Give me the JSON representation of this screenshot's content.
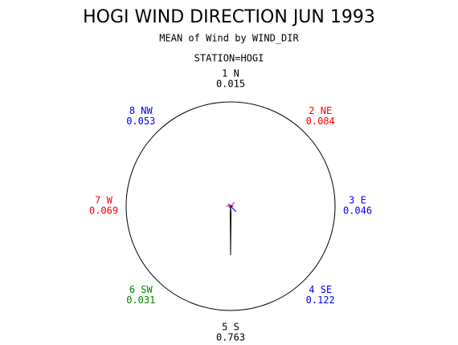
{
  "chart_data": {
    "type": "star",
    "title": "HOGI WIND DIRECTION JUN 1993",
    "subtitle": "MEAN of Wind by WIND_DIR",
    "station": "STATION=HOGI",
    "categories": [
      "1 N",
      "2 NE",
      "3 E",
      "4 SE",
      "5 S",
      "6 SW",
      "7 W",
      "8 NW"
    ],
    "values": [
      0.015,
      0.084,
      0.046,
      0.122,
      0.763,
      0.031,
      0.069,
      0.053
    ],
    "colors": [
      "#000000",
      "#ff0000",
      "#0000ff",
      "#0000ff",
      "#000000",
      "#008000",
      "#ff0000",
      "#0000ff"
    ]
  }
}
